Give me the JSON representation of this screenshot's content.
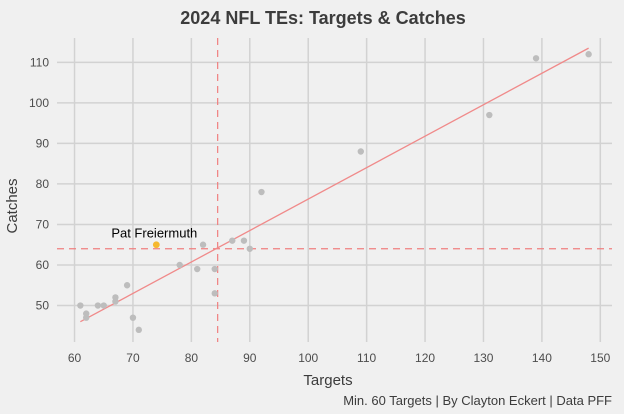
{
  "chart_data": {
    "type": "scatter",
    "title": "2024 NFL TEs: Targets & Catches",
    "xlabel": "Targets",
    "ylabel": "Catches",
    "caption": "Min. 60 Targets | By Clayton Eckert | Data PFF",
    "xlim": [
      57,
      152
    ],
    "ylim": [
      41,
      116
    ],
    "xticks": [
      60,
      70,
      80,
      90,
      100,
      110,
      120,
      130,
      140,
      150
    ],
    "yticks": [
      50,
      60,
      70,
      80,
      90,
      100,
      110
    ],
    "grid": true,
    "points": [
      {
        "x": 61,
        "y": 50
      },
      {
        "x": 62,
        "y": 48
      },
      {
        "x": 62,
        "y": 47
      },
      {
        "x": 64,
        "y": 50
      },
      {
        "x": 65,
        "y": 50
      },
      {
        "x": 67,
        "y": 51
      },
      {
        "x": 67,
        "y": 52
      },
      {
        "x": 69,
        "y": 55
      },
      {
        "x": 70,
        "y": 47
      },
      {
        "x": 71,
        "y": 44
      },
      {
        "x": 78,
        "y": 60
      },
      {
        "x": 81,
        "y": 59
      },
      {
        "x": 82,
        "y": 65
      },
      {
        "x": 84,
        "y": 53
      },
      {
        "x": 84,
        "y": 59
      },
      {
        "x": 87,
        "y": 66
      },
      {
        "x": 89,
        "y": 66
      },
      {
        "x": 90,
        "y": 64
      },
      {
        "x": 92,
        "y": 78
      },
      {
        "x": 109,
        "y": 88
      },
      {
        "x": 131,
        "y": 97
      },
      {
        "x": 139,
        "y": 111
      },
      {
        "x": 148,
        "y": 112
      }
    ],
    "highlight": {
      "label": "Pat Freiermuth",
      "x": 74,
      "y": 65
    },
    "mean_lines": {
      "x": 84.5,
      "y": 64
    },
    "trend_line": {
      "x1": 61,
      "y1": 46,
      "x2": 148,
      "y2": 113.5
    },
    "colors": {
      "points": "#bdbdbd",
      "highlight": "#f5b82e",
      "trend": "#f08a8a",
      "mean_lines": "#f07f7f",
      "grid": "#d2d2d2",
      "background": "#f0f0f0"
    }
  }
}
